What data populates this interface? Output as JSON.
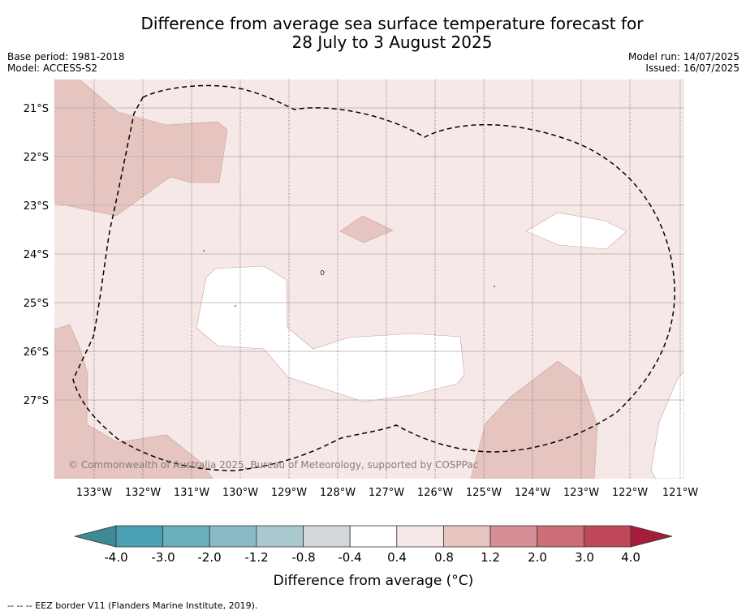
{
  "header": {
    "title_line1": "Difference from average sea surface temperature forecast for",
    "title_line2": "28 July to 3 August 2025",
    "base_period": "Base period: 1981-2018",
    "model": "Model: ACCESS-S2",
    "model_run": "Model run: 14/07/2025",
    "issued": "Issued: 16/07/2025"
  },
  "map": {
    "lat_labels": [
      "21°S",
      "22°S",
      "23°S",
      "24°S",
      "25°S",
      "26°S",
      "27°S"
    ],
    "lon_labels": [
      "133°W",
      "132°W",
      "131°W",
      "130°W",
      "129°W",
      "128°W",
      "127°W",
      "126°W",
      "125°W",
      "124°W",
      "123°W",
      "122°W",
      "121°W"
    ],
    "watermark": "© Commonwealth of Australia 2025, Bureau of Meteorology, supported by COSPPac",
    "colors": {
      "band_0_4_to_0_8": "#f5e8e7",
      "band_0_8_to_1_2": "#e6c5c1",
      "band_neg0_4_to_0_4": "#ffffff",
      "eez_line": "#000000"
    }
  },
  "colorbar": {
    "tick_labels": [
      "-4.0",
      "-3.0",
      "-2.0",
      "-1.2",
      "-0.8",
      "-0.4",
      "0.4",
      "0.8",
      "1.2",
      "2.0",
      "3.0",
      "4.0"
    ],
    "label": "Difference from average (°C)",
    "colors": [
      "#3e8a96",
      "#4aa0b3",
      "#6aadbd",
      "#8bbac6",
      "#a9c9cf",
      "#d3d8db",
      "#ffffff",
      "#f5e8e7",
      "#e6c5c1",
      "#d78f97",
      "#cd6d77",
      "#bf4858",
      "#a51d3b"
    ]
  },
  "footer": {
    "legend_text": "--  --  -- EEZ border V11 (Flanders Marine Institute, 2019)."
  }
}
